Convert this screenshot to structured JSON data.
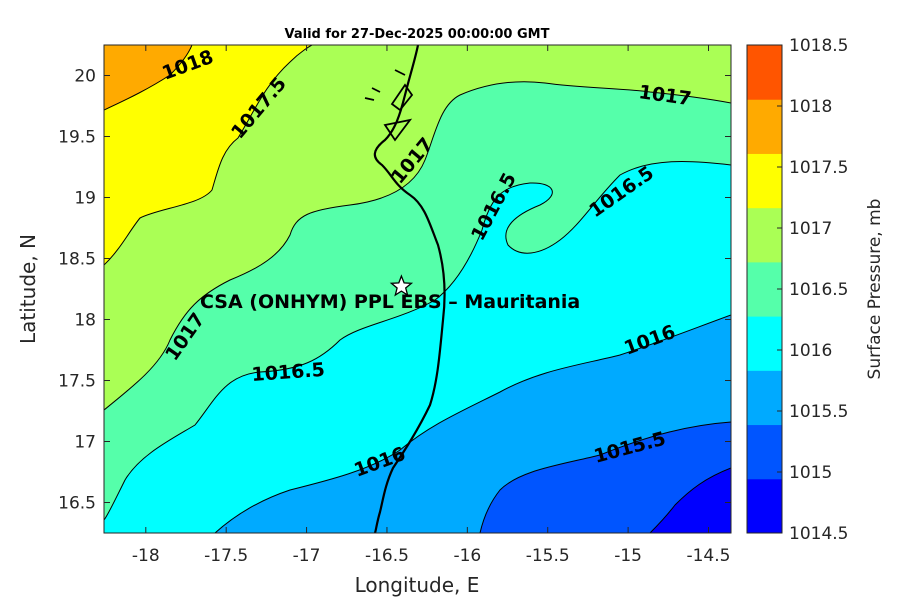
{
  "chart_data": {
    "type": "heatmap",
    "subtype": "filled-contour-map",
    "title": "Valid for 27-Dec-2025 00:00:00 GMT",
    "xlabel": "Longitude, E",
    "ylabel": "Latitude, N",
    "xlim": [
      -18.26,
      -14.36
    ],
    "ylim": [
      16.25,
      20.25
    ],
    "xticks": [
      "-18",
      "-17.5",
      "-17",
      "-16.5",
      "-16",
      "-15.5",
      "-15",
      "-14.5"
    ],
    "xtick_values": [
      -18,
      -17.5,
      -17,
      -16.5,
      -16,
      -15.5,
      -15,
      -14.5
    ],
    "yticks": [
      "16.5",
      "17",
      "17.5",
      "18",
      "18.5",
      "19",
      "19.5",
      "20"
    ],
    "ytick_values": [
      16.5,
      17,
      17.5,
      18,
      18.5,
      19,
      19.5,
      20
    ],
    "colorbar": {
      "label": "Surface Pressure, mb",
      "ticks": [
        "1014.5",
        "1015",
        "1015.5",
        "1016",
        "1016.5",
        "1017",
        "1017.5",
        "1018",
        "1018.5"
      ],
      "tick_values": [
        1014.5,
        1015,
        1015.5,
        1016,
        1016.5,
        1017,
        1017.5,
        1018,
        1018.5
      ],
      "colors": [
        "#0000ff",
        "#0055ff",
        "#00aaff",
        "#00ffff",
        "#55ffaa",
        "#aaff55",
        "#ffff00",
        "#ffaa00",
        "#ff5500"
      ]
    },
    "contour_labels": [
      "1018",
      "1017.5",
      "1017",
      "1017",
      "1016.5",
      "1016.5",
      "1017",
      "1016.5",
      "1016",
      "1016",
      "1015.5"
    ],
    "marker": {
      "label": "CSA (ONHYM) PPL EBS  – Mauritania",
      "lon": -16.41,
      "lat": 18.27,
      "symbol": "star"
    }
  }
}
